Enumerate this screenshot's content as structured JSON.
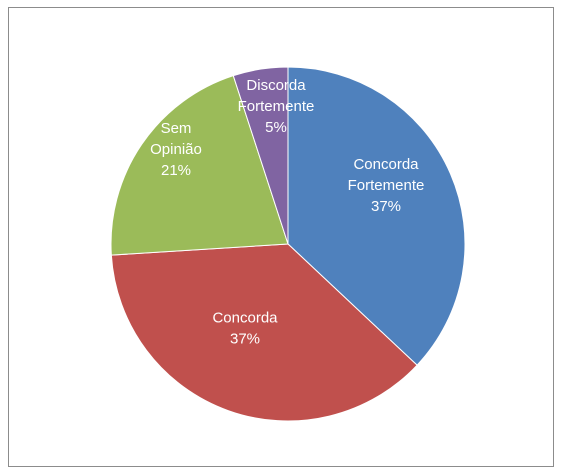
{
  "chart_data": {
    "type": "pie",
    "title": "",
    "legend": "none",
    "slices": [
      {
        "label": "Concorda Fortemente",
        "label_lines": [
          "Concorda",
          "Fortemente"
        ],
        "percent_label": "37%",
        "value": 37,
        "color": "#4f81bd"
      },
      {
        "label": "Concorda",
        "label_lines": [
          "Concorda"
        ],
        "percent_label": "37%",
        "value": 37,
        "color": "#c0504d"
      },
      {
        "label": "Sem Opinião",
        "label_lines": [
          "Sem",
          "Opinião"
        ],
        "percent_label": "21%",
        "value": 21,
        "color": "#9bbb59"
      },
      {
        "label": "Discorda Fortemente",
        "label_lines": [
          "Discorda",
          "Fortemente"
        ],
        "percent_label": "5%",
        "value": 5,
        "color": "#8064a2"
      }
    ]
  }
}
